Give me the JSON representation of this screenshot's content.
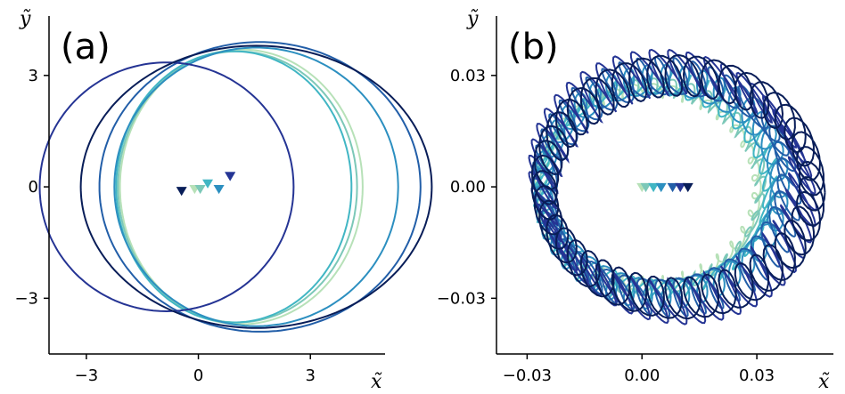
{
  "chart_data": [
    {
      "panel": "(a)",
      "type": "line",
      "xlabel": "x̃",
      "ylabel": "ỹ",
      "xlim": [
        -4.0,
        5.0
      ],
      "ylim": [
        -4.5,
        4.6
      ],
      "xticks": [
        -3,
        0,
        3
      ],
      "xtick_labels": [
        "−3",
        "0",
        "3"
      ],
      "yticks": [
        -3,
        0,
        3
      ],
      "ytick_labels": [
        "−3",
        "0",
        "3"
      ],
      "series": [
        {
          "color": "#b7e1b8",
          "cx": 1.15,
          "cy": 0.0,
          "rx": 3.25,
          "ry": 3.7,
          "marker": [
            -0.1,
            -0.05
          ]
        },
        {
          "color": "#7cc8b8",
          "cx": 1.05,
          "cy": 0.0,
          "rx": 3.2,
          "ry": 3.65,
          "marker": [
            0.05,
            -0.05
          ]
        },
        {
          "color": "#41b6c4",
          "cx": 0.95,
          "cy": 0.0,
          "rx": 3.15,
          "ry": 3.65,
          "marker": [
            0.25,
            0.1
          ]
        },
        {
          "color": "#2c8fc0",
          "cx": 1.55,
          "cy": 0.0,
          "rx": 3.8,
          "ry": 3.75,
          "marker": [
            0.55,
            -0.05
          ]
        },
        {
          "color": "#225ea8",
          "cx": 1.65,
          "cy": 0.0,
          "rx": 4.3,
          "ry": 3.9,
          "marker": [
            0.85,
            0.3
          ]
        },
        {
          "color": "#253494",
          "cx": -0.85,
          "cy": 0.0,
          "rx": 3.4,
          "ry": 3.35,
          "marker": [
            0.85,
            0.3
          ]
        },
        {
          "color": "#081d58",
          "cx": 1.55,
          "cy": 0.0,
          "rx": 4.7,
          "ry": 3.8,
          "marker": [
            -0.45,
            -0.1
          ]
        }
      ]
    },
    {
      "panel": "(b)",
      "type": "line",
      "xlabel": "x̃",
      "ylabel": "ỹ",
      "xlim": [
        -0.038,
        0.05
      ],
      "ylim": [
        -0.045,
        0.046
      ],
      "xticks": [
        -0.03,
        0.0,
        0.03
      ],
      "xtick_labels": [
        "−0.03",
        "0.00",
        "0.03"
      ],
      "yticks": [
        -0.03,
        0.0,
        0.03
      ],
      "ytick_labels": [
        "−0.03",
        "0.00",
        "0.03"
      ],
      "series": [
        {
          "color": "#b7e1b8",
          "cx": 0.0015,
          "rx": 0.0285,
          "ry": 0.026,
          "amp": 0.0018,
          "marker": [
            0.0,
            0.0
          ]
        },
        {
          "color": "#7cc8b8",
          "cx": 0.0025,
          "rx": 0.0285,
          "ry": 0.027,
          "amp": 0.0022,
          "marker": [
            0.001,
            0.0
          ]
        },
        {
          "color": "#41b6c4",
          "cx": 0.0035,
          "rx": 0.03,
          "ry": 0.028,
          "amp": 0.003,
          "marker": [
            0.003,
            0.0
          ]
        },
        {
          "color": "#2c8fc0",
          "cx": 0.005,
          "rx": 0.031,
          "ry": 0.029,
          "amp": 0.004,
          "marker": [
            0.005,
            0.0
          ]
        },
        {
          "color": "#225ea8",
          "cx": 0.0065,
          "rx": 0.032,
          "ry": 0.03,
          "amp": 0.005,
          "marker": [
            0.008,
            0.0
          ]
        },
        {
          "color": "#253494",
          "cx": 0.008,
          "rx": 0.034,
          "ry": 0.031,
          "amp": 0.006,
          "marker": [
            0.01,
            0.0
          ]
        },
        {
          "color": "#081d58",
          "cx": 0.0095,
          "rx": 0.035,
          "ry": 0.03,
          "amp": 0.0055,
          "marker": [
            0.012,
            0.0
          ]
        }
      ]
    }
  ]
}
